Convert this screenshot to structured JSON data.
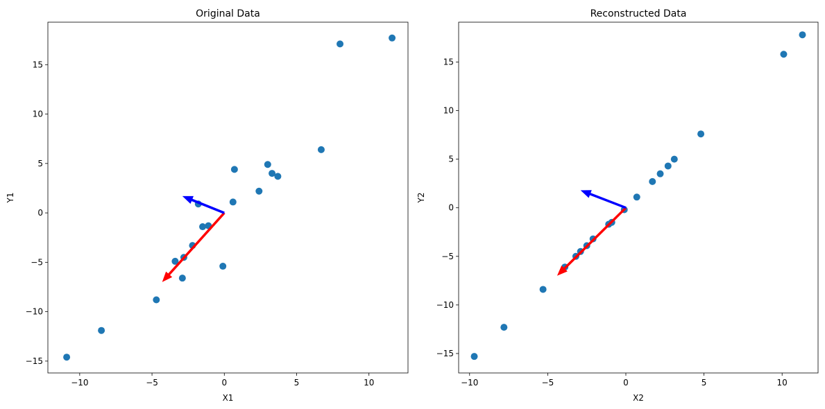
{
  "chart_data": [
    {
      "type": "scatter",
      "title": "Original Data",
      "xlabel": "X1",
      "ylabel": "Y1",
      "xlim": [
        -12.2,
        12.7
      ],
      "ylim": [
        -16.2,
        19.3
      ],
      "xticks": [
        -10,
        -5,
        0,
        5,
        10
      ],
      "yticks": [
        -15,
        -10,
        -5,
        0,
        5,
        10,
        15
      ],
      "point_color": "#1f77b4",
      "points": [
        {
          "x": -10.9,
          "y": -14.6
        },
        {
          "x": -8.5,
          "y": -11.9
        },
        {
          "x": -4.7,
          "y": -8.8
        },
        {
          "x": -2.9,
          "y": -6.6
        },
        {
          "x": -3.4,
          "y": -4.9
        },
        {
          "x": -2.8,
          "y": -4.5
        },
        {
          "x": -2.2,
          "y": -3.3
        },
        {
          "x": -1.5,
          "y": -1.4
        },
        {
          "x": -1.1,
          "y": -1.3
        },
        {
          "x": -1.8,
          "y": 0.9
        },
        {
          "x": -0.1,
          "y": -5.4
        },
        {
          "x": 0.6,
          "y": 1.1
        },
        {
          "x": 0.7,
          "y": 4.4
        },
        {
          "x": 2.4,
          "y": 2.2
        },
        {
          "x": 3.0,
          "y": 4.9
        },
        {
          "x": 3.3,
          "y": 4.0
        },
        {
          "x": 3.7,
          "y": 3.7
        },
        {
          "x": 6.7,
          "y": 6.4
        },
        {
          "x": 8.0,
          "y": 17.1
        },
        {
          "x": 11.6,
          "y": 17.7
        }
      ],
      "arrows": [
        {
          "color": "#ff0000",
          "x0": 0,
          "y0": 0,
          "x1": -4.3,
          "y1": -7.0
        },
        {
          "color": "#0000ff",
          "x0": 0,
          "y0": 0,
          "x1": -2.9,
          "y1": 1.7
        }
      ]
    },
    {
      "type": "scatter",
      "title": "Reconstructed Data",
      "xlabel": "X2",
      "ylabel": "Y2",
      "xlim": [
        -10.7,
        12.3
      ],
      "ylim": [
        -17.0,
        19.1
      ],
      "xticks": [
        -10,
        -5,
        0,
        5,
        10
      ],
      "yticks": [
        -15,
        -10,
        -5,
        0,
        5,
        10,
        15
      ],
      "point_color": "#1f77b4",
      "points": [
        {
          "x": -9.7,
          "y": -15.3
        },
        {
          "x": -7.8,
          "y": -12.3
        },
        {
          "x": -5.3,
          "y": -8.4
        },
        {
          "x": -3.9,
          "y": -6.1
        },
        {
          "x": -3.2,
          "y": -5.0
        },
        {
          "x": -2.9,
          "y": -4.5
        },
        {
          "x": -2.5,
          "y": -3.9
        },
        {
          "x": -2.1,
          "y": -3.2
        },
        {
          "x": -1.1,
          "y": -1.7
        },
        {
          "x": -0.9,
          "y": -1.5
        },
        {
          "x": -0.1,
          "y": -0.2
        },
        {
          "x": 0.7,
          "y": 1.1
        },
        {
          "x": 1.7,
          "y": 2.7
        },
        {
          "x": 2.2,
          "y": 3.5
        },
        {
          "x": 2.7,
          "y": 4.3
        },
        {
          "x": 3.1,
          "y": 5.0
        },
        {
          "x": 4.8,
          "y": 7.6
        },
        {
          "x": 10.1,
          "y": 15.8
        },
        {
          "x": 11.3,
          "y": 17.8
        }
      ],
      "arrows": [
        {
          "color": "#ff0000",
          "x0": 0,
          "y0": 0,
          "x1": -4.4,
          "y1": -7.0
        },
        {
          "color": "#0000ff",
          "x0": 0,
          "y0": 0,
          "x1": -2.9,
          "y1": 1.8
        }
      ]
    }
  ]
}
